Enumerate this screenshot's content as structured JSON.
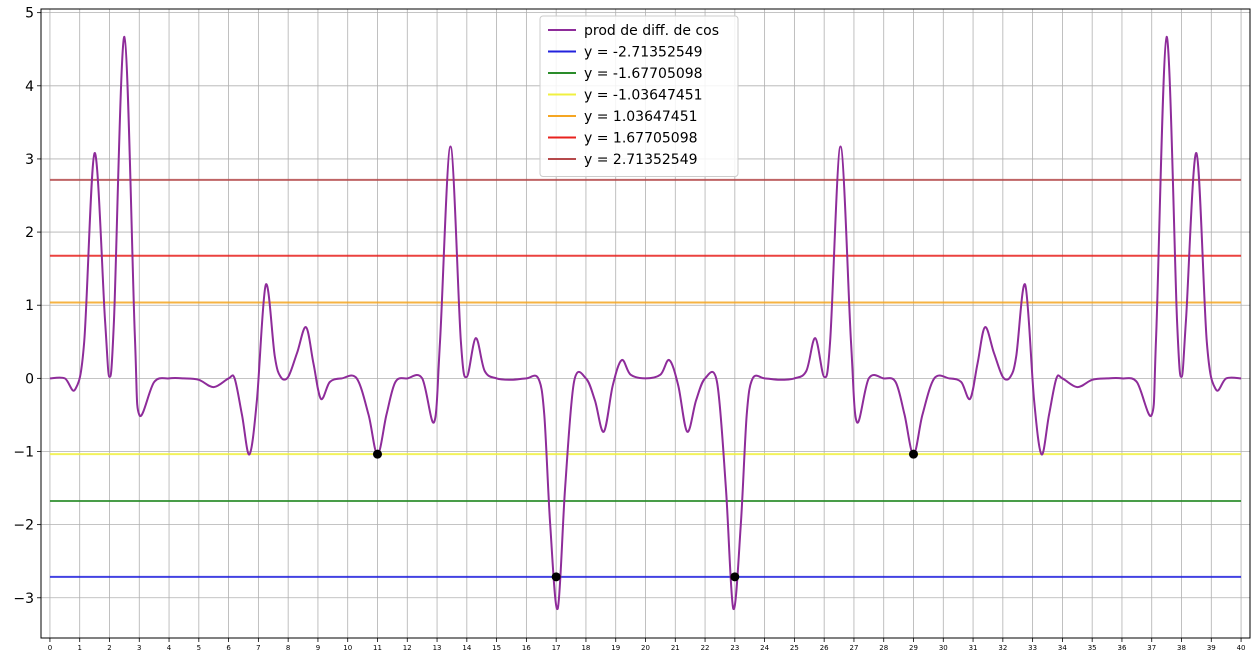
{
  "chart_data": {
    "type": "line",
    "title": "",
    "xlabel": "",
    "ylabel": "",
    "xlim": [
      -0.3,
      40.3
    ],
    "ylim": [
      -3.55,
      5.05
    ],
    "grid": true,
    "legend_position": "top-center",
    "x_ticks": [
      "0",
      "1",
      "2",
      "3",
      "4",
      "5",
      "6",
      "7",
      "8",
      "9",
      "10",
      "11",
      "12",
      "13",
      "14",
      "15",
      "16",
      "17",
      "18",
      "19",
      "20",
      "21",
      "22",
      "23",
      "24",
      "25",
      "26",
      "27",
      "28",
      "29",
      "30",
      "31",
      "32",
      "33",
      "34",
      "35",
      "36",
      "37",
      "38",
      "39",
      "40"
    ],
    "y_ticks": [
      "−3",
      "−2",
      "−1",
      "0",
      "1",
      "2",
      "3",
      "4",
      "5"
    ],
    "curve": {
      "name": "prod de diff. de cos",
      "color": "#8e2c9a",
      "points": [
        [
          0,
          0
        ],
        [
          0.5,
          0
        ],
        [
          0.85,
          -0.15
        ],
        [
          1.15,
          0.5
        ],
        [
          1.5,
          3.08
        ],
        [
          1.85,
          0.8
        ],
        [
          2.0,
          0.02
        ],
        [
          2.15,
          0.8
        ],
        [
          2.5,
          4.67
        ],
        [
          2.85,
          0.6
        ],
        [
          3.0,
          -0.5
        ],
        [
          3.5,
          -0.05
        ],
        [
          4,
          0
        ],
        [
          4.5,
          0
        ],
        [
          5,
          -0.02
        ],
        [
          5.5,
          -0.12
        ],
        [
          6,
          0
        ],
        [
          6.2,
          0
        ],
        [
          6.45,
          -0.5
        ],
        [
          6.7,
          -1.04
        ],
        [
          6.95,
          -0.3
        ],
        [
          7.25,
          1.28
        ],
        [
          7.55,
          0.3
        ],
        [
          7.75,
          0.02
        ],
        [
          8,
          0.02
        ],
        [
          8.3,
          0.35
        ],
        [
          8.6,
          0.7
        ],
        [
          8.85,
          0.2
        ],
        [
          9.1,
          -0.28
        ],
        [
          9.4,
          -0.05
        ],
        [
          9.8,
          0
        ],
        [
          10.3,
          0
        ],
        [
          10.7,
          -0.5
        ],
        [
          11,
          -1.04
        ],
        [
          11.3,
          -0.5
        ],
        [
          11.6,
          -0.05
        ],
        [
          12,
          0
        ],
        [
          12.5,
          0
        ],
        [
          12.9,
          -0.6
        ],
        [
          13.1,
          0.5
        ],
        [
          13.45,
          3.17
        ],
        [
          13.8,
          0.5
        ],
        [
          14.0,
          0.02
        ],
        [
          14.3,
          0.55
        ],
        [
          14.6,
          0.1
        ],
        [
          15,
          0
        ],
        [
          15.5,
          -0.02
        ],
        [
          16,
          0
        ],
        [
          16.4,
          0
        ],
        [
          16.6,
          -0.5
        ],
        [
          16.8,
          -2.0
        ],
        [
          17.05,
          -3.15
        ],
        [
          17.3,
          -1.5
        ],
        [
          17.6,
          -0.05
        ],
        [
          18,
          0
        ],
        [
          18.3,
          -0.3
        ],
        [
          18.6,
          -0.73
        ],
        [
          18.9,
          -0.1
        ],
        [
          19.2,
          0.25
        ],
        [
          19.5,
          0.05
        ],
        [
          20,
          0
        ],
        [
          20.5,
          0.05
        ],
        [
          20.8,
          0.25
        ],
        [
          21.1,
          -0.1
        ],
        [
          21.4,
          -0.73
        ],
        [
          21.7,
          -0.3
        ],
        [
          22,
          0
        ],
        [
          22.4,
          -0.05
        ],
        [
          22.7,
          -1.5
        ],
        [
          22.95,
          -3.15
        ],
        [
          23.2,
          -2.0
        ],
        [
          23.4,
          -0.5
        ],
        [
          23.6,
          0
        ],
        [
          24,
          0
        ],
        [
          24.5,
          -0.02
        ],
        [
          25,
          0
        ],
        [
          25.4,
          0.1
        ],
        [
          25.7,
          0.55
        ],
        [
          26.0,
          0.02
        ],
        [
          26.2,
          0.5
        ],
        [
          26.55,
          3.17
        ],
        [
          26.9,
          0.5
        ],
        [
          27.1,
          -0.6
        ],
        [
          27.5,
          0
        ],
        [
          28,
          0
        ],
        [
          28.4,
          -0.05
        ],
        [
          28.7,
          -0.5
        ],
        [
          29,
          -1.04
        ],
        [
          29.3,
          -0.5
        ],
        [
          29.7,
          0
        ],
        [
          30.2,
          0
        ],
        [
          30.6,
          -0.05
        ],
        [
          30.9,
          -0.28
        ],
        [
          31.15,
          0.2
        ],
        [
          31.4,
          0.7
        ],
        [
          31.7,
          0.35
        ],
        [
          32,
          0.02
        ],
        [
          32.25,
          0.02
        ],
        [
          32.45,
          0.3
        ],
        [
          32.75,
          1.28
        ],
        [
          33.05,
          -0.3
        ],
        [
          33.3,
          -1.04
        ],
        [
          33.55,
          -0.5
        ],
        [
          33.8,
          0
        ],
        [
          34,
          0
        ],
        [
          34.5,
          -0.12
        ],
        [
          35,
          -0.02
        ],
        [
          35.5,
          0
        ],
        [
          36,
          0
        ],
        [
          36.5,
          -0.05
        ],
        [
          37.0,
          -0.5
        ],
        [
          37.15,
          0.6
        ],
        [
          37.5,
          4.67
        ],
        [
          37.85,
          0.8
        ],
        [
          38.0,
          0.02
        ],
        [
          38.15,
          0.8
        ],
        [
          38.5,
          3.08
        ],
        [
          38.85,
          0.5
        ],
        [
          39.15,
          -0.15
        ],
        [
          39.5,
          0
        ],
        [
          40,
          0
        ]
      ]
    },
    "hlines": [
      {
        "label": "y = -2.71352549",
        "value": -2.71352549,
        "color": "#2222dd"
      },
      {
        "label": "y = -1.67705098",
        "value": -1.67705098,
        "color": "#2a8c2a"
      },
      {
        "label": "y = -1.03647451",
        "value": -1.03647451,
        "color": "#f0f040"
      },
      {
        "label": "y = 1.03647451",
        "value": 1.03647451,
        "color": "#f5a623"
      },
      {
        "label": "y = 1.67705098",
        "value": 1.67705098,
        "color": "#e8221e"
      },
      {
        "label": "y = 2.71352549",
        "value": 2.71352549,
        "color": "#b5494b"
      }
    ],
    "markers": [
      {
        "x": 11,
        "y": -1.03647451
      },
      {
        "x": 17,
        "y": -2.71352549
      },
      {
        "x": 23,
        "y": -2.71352549
      },
      {
        "x": 29,
        "y": -1.03647451
      }
    ]
  }
}
